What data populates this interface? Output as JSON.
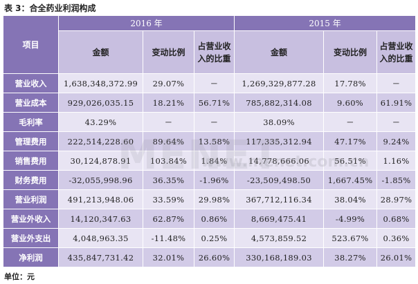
{
  "caption": "表 3：合全药业利润构成",
  "header": {
    "item_label": "项目",
    "years": [
      "2016 年",
      "2015 年"
    ],
    "columns": [
      "金额",
      "变动比例",
      "占营业收入的比重",
      "金额",
      "变动比例",
      "占营业收入的比重"
    ]
  },
  "rows": [
    {
      "label": "营业收入",
      "cells": [
        "1,638,348,372.99",
        "29.07%",
        "－",
        "1,269,329,877.28",
        "17.78%",
        "－"
      ]
    },
    {
      "label": "营业成本",
      "cells": [
        "929,026,035.15",
        "18.21%",
        "56.71%",
        "785,882,314.08",
        "9.60%",
        "61.91%"
      ]
    },
    {
      "label": "毛利率",
      "cells": [
        "43.29%",
        "－",
        "－",
        "38.09%",
        "－",
        "－"
      ]
    },
    {
      "label": "管理费用",
      "cells": [
        "222,514,228.60",
        "89.64%",
        "13.58%",
        "117,335,312.94",
        "47.17%",
        "9.24%"
      ]
    },
    {
      "label": "销售费用",
      "cells": [
        "30,124,878.91",
        "103.84%",
        "1.84%",
        "14,778,666.06",
        "56.51%",
        "1.16%"
      ]
    },
    {
      "label": "财务费用",
      "cells": [
        "-32,055,998.96",
        "36.35%",
        "-1.96%",
        "-23,509,498.50",
        "1,667.45%",
        "-1.85%"
      ]
    },
    {
      "label": "营业利润",
      "cells": [
        "491,213,948.06",
        "33.59%",
        "29.98%",
        "367,712,116.34",
        "38.04%",
        "28.97%"
      ]
    },
    {
      "label": "营业外收入",
      "cells": [
        "14,120,347.63",
        "62.87%",
        "0.86%",
        "8,669,475.41",
        "-4.99%",
        "0.68%"
      ]
    },
    {
      "label": "营业外支出",
      "cells": [
        "4,048,963.35",
        "-11.48%",
        "0.25%",
        "4,573,859.52",
        "523.67%",
        "0.36%"
      ]
    },
    {
      "label": "净利润",
      "cells": [
        "435,847,731.42",
        "32.01%",
        "26.60%",
        "330,168,189.03",
        "38.27%",
        "26.01%"
      ]
    }
  ],
  "watermark": {
    "brand": "MENET",
    "url": "www.menet.com.cn"
  },
  "unit_note": "单位：元"
}
